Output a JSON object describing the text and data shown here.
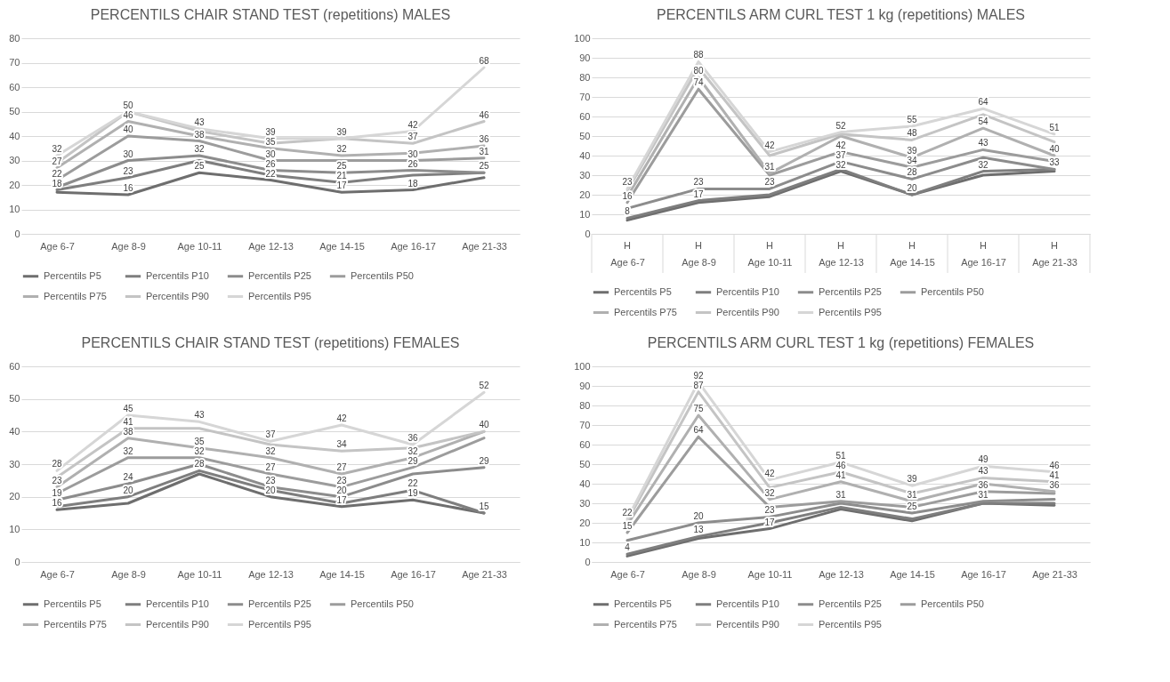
{
  "chart_data": [
    {
      "type": "line",
      "title": "PERCENTILS CHAIR STAND TEST (repetitions) MALES",
      "categories": [
        "Age 6-7",
        "Age 8-9",
        "Age 10-11",
        "Age 12-13",
        "Age 14-15",
        "Age 16-17",
        "Age 21-33"
      ],
      "ylim": [
        0,
        80
      ],
      "yticks": [
        0,
        10,
        20,
        30,
        40,
        50,
        60,
        70,
        80
      ],
      "grid": "y",
      "legend": "bottom",
      "marker": "none",
      "series": [
        {
          "name": "Percentils P5",
          "color": "#6e6e6e",
          "values": [
            17,
            16,
            25,
            22,
            17,
            18,
            23
          ],
          "value_labels": [
            null,
            "16",
            "25",
            "22",
            "17",
            "18",
            null
          ]
        },
        {
          "name": "Percentils P10",
          "color": "#7e7e7e",
          "values": [
            18,
            23,
            30,
            24,
            21,
            24,
            25
          ],
          "value_labels": [
            "18",
            "23",
            null,
            null,
            "21",
            null,
            null
          ]
        },
        {
          "name": "Percentils P25",
          "color": "#8c8c8c",
          "values": [
            19,
            30,
            32,
            26,
            25,
            26,
            25
          ],
          "value_labels": [
            null,
            "30",
            "32",
            "26",
            "25",
            "26",
            "25"
          ]
        },
        {
          "name": "Percentils P50",
          "color": "#9c9c9c",
          "values": [
            22,
            40,
            38,
            30,
            30,
            30,
            31
          ],
          "value_labels": [
            "22",
            "40",
            "38",
            "30",
            null,
            "30",
            "31"
          ]
        },
        {
          "name": "Percentils P75",
          "color": "#b0b0b0",
          "values": [
            27,
            46,
            40,
            35,
            32,
            33,
            36
          ],
          "value_labels": [
            "27",
            "46",
            null,
            "35",
            "32",
            null,
            "36"
          ]
        },
        {
          "name": "Percentils P90",
          "color": "#c4c4c4",
          "values": [
            29,
            50,
            42,
            37,
            39,
            37,
            46
          ],
          "value_labels": [
            null,
            null,
            null,
            null,
            null,
            "37",
            "46"
          ]
        },
        {
          "name": "Percentils P95",
          "color": "#d6d6d6",
          "values": [
            32,
            50,
            43,
            39,
            39,
            42,
            68
          ],
          "value_labels": [
            "32",
            "50",
            "43",
            "39",
            "39",
            "42",
            "68"
          ]
        }
      ]
    },
    {
      "type": "line",
      "title": "PERCENTILS ARM CURL TEST 1 kg (repetitions) MALES",
      "categories": [
        "Age 6-7",
        "Age 8-9",
        "Age 10-11",
        "Age 12-13",
        "Age 14-15",
        "Age 16-17",
        "Age 21-33"
      ],
      "ylim": [
        0,
        100
      ],
      "yticks": [
        0,
        10,
        20,
        30,
        40,
        50,
        60,
        70,
        80,
        90,
        100
      ],
      "grid": "y",
      "legend": "bottom",
      "marker": "none",
      "annotations": [
        "H",
        "H",
        "H",
        "H",
        "H",
        "H",
        "H"
      ],
      "series": [
        {
          "name": "Percentils P5",
          "color": "#6e6e6e",
          "values": [
            7,
            16,
            19,
            32,
            20,
            30,
            32
          ],
          "value_labels": [
            null,
            null,
            null,
            "32",
            "20",
            null,
            null
          ]
        },
        {
          "name": "Percentils P10",
          "color": "#7e7e7e",
          "values": [
            8,
            17,
            20,
            33,
            20,
            32,
            33
          ],
          "value_labels": [
            "8",
            "17",
            null,
            null,
            null,
            "32",
            null
          ]
        },
        {
          "name": "Percentils P25",
          "color": "#8c8c8c",
          "values": [
            13,
            23,
            23,
            37,
            28,
            39,
            33
          ],
          "value_labels": [
            null,
            "23",
            "23",
            "37",
            "28",
            null,
            "33"
          ]
        },
        {
          "name": "Percentils P50",
          "color": "#9c9c9c",
          "values": [
            16,
            74,
            30,
            42,
            34,
            43,
            37
          ],
          "value_labels": [
            "16",
            "74",
            null,
            "42",
            "34",
            "43",
            null
          ]
        },
        {
          "name": "Percentils P75",
          "color": "#b0b0b0",
          "values": [
            19,
            80,
            31,
            50,
            39,
            54,
            40
          ],
          "value_labels": [
            null,
            "80",
            "31",
            null,
            "39",
            "54",
            "40"
          ]
        },
        {
          "name": "Percentils P90",
          "color": "#c4c4c4",
          "values": [
            22,
            85,
            40,
            51,
            48,
            61,
            47
          ],
          "value_labels": [
            null,
            null,
            null,
            null,
            "48",
            null,
            null
          ]
        },
        {
          "name": "Percentils P95",
          "color": "#d6d6d6",
          "values": [
            23,
            88,
            42,
            52,
            55,
            64,
            51
          ],
          "value_labels": [
            "23",
            "88",
            "42",
            "52",
            "55",
            "64",
            "51"
          ]
        }
      ]
    },
    {
      "type": "line",
      "title": "PERCENTILS CHAIR STAND TEST (repetitions) FEMALES",
      "categories": [
        "Age 6-7",
        "Age 8-9",
        "Age 10-11",
        "Age 12-13",
        "Age 14-15",
        "Age 16-17",
        "Age 21-33"
      ],
      "ylim": [
        0,
        60
      ],
      "yticks": [
        0,
        10,
        20,
        30,
        40,
        50,
        60
      ],
      "grid": "y",
      "legend": "bottom",
      "marker": "none",
      "series": [
        {
          "name": "Percentils P5",
          "color": "#6e6e6e",
          "values": [
            16,
            18,
            27,
            20,
            17,
            19,
            15
          ],
          "value_labels": [
            "16",
            null,
            null,
            "20",
            "17",
            "19",
            null
          ]
        },
        {
          "name": "Percentils P10",
          "color": "#7e7e7e",
          "values": [
            17,
            20,
            28,
            22,
            18,
            22,
            15
          ],
          "value_labels": [
            null,
            "20",
            "28",
            null,
            null,
            "22",
            "15"
          ]
        },
        {
          "name": "Percentils P25",
          "color": "#8c8c8c",
          "values": [
            19,
            24,
            30,
            23,
            20,
            27,
            29
          ],
          "value_labels": [
            "19",
            "24",
            null,
            "23",
            "20",
            null,
            "29"
          ]
        },
        {
          "name": "Percentils P50",
          "color": "#9c9c9c",
          "values": [
            21,
            32,
            32,
            27,
            23,
            29,
            38
          ],
          "value_labels": [
            null,
            "32",
            "32",
            "27",
            "23",
            "29",
            null
          ]
        },
        {
          "name": "Percentils P75",
          "color": "#b0b0b0",
          "values": [
            23,
            38,
            35,
            32,
            27,
            32,
            40
          ],
          "value_labels": [
            "23",
            "38",
            "35",
            "32",
            "27",
            "32",
            null
          ]
        },
        {
          "name": "Percentils P90",
          "color": "#c4c4c4",
          "values": [
            26,
            41,
            41,
            36,
            34,
            35,
            40
          ],
          "value_labels": [
            null,
            "41",
            null,
            null,
            "34",
            null,
            "40"
          ]
        },
        {
          "name": "Percentils P95",
          "color": "#d6d6d6",
          "values": [
            28,
            45,
            43,
            37,
            42,
            36,
            52
          ],
          "value_labels": [
            "28",
            "45",
            "43",
            "37",
            "42",
            "36",
            "52"
          ]
        }
      ]
    },
    {
      "type": "line",
      "title": "PERCENTILS ARM CURL TEST 1 kg (repetitions) FEMALES",
      "categories": [
        "Age 6-7",
        "Age 8-9",
        "Age 10-11",
        "Age 12-13",
        "Age 14-15",
        "Age 16-17",
        "Age 21-33"
      ],
      "ylim": [
        0,
        100
      ],
      "yticks": [
        0,
        10,
        20,
        30,
        40,
        50,
        60,
        70,
        80,
        90,
        100
      ],
      "grid": "y",
      "legend": "bottom",
      "marker": "none",
      "series": [
        {
          "name": "Percentils P5",
          "color": "#6e6e6e",
          "values": [
            3,
            12,
            17,
            27,
            21,
            30,
            29
          ],
          "value_labels": [
            null,
            null,
            "17",
            null,
            null,
            null,
            null
          ]
        },
        {
          "name": "Percentils P10",
          "color": "#7e7e7e",
          "values": [
            4,
            13,
            20,
            28,
            22,
            30,
            30
          ],
          "value_labels": [
            "4",
            "13",
            null,
            null,
            null,
            null,
            null
          ]
        },
        {
          "name": "Percentils P25",
          "color": "#8c8c8c",
          "values": [
            11,
            20,
            23,
            30,
            25,
            31,
            32
          ],
          "value_labels": [
            null,
            "20",
            "23",
            null,
            "25",
            "31",
            null
          ]
        },
        {
          "name": "Percentils P50",
          "color": "#9c9c9c",
          "values": [
            15,
            64,
            28,
            31,
            28,
            36,
            35
          ],
          "value_labels": [
            "15",
            "64",
            null,
            "31",
            null,
            "36",
            null
          ]
        },
        {
          "name": "Percentils P75",
          "color": "#b0b0b0",
          "values": [
            19,
            75,
            32,
            41,
            31,
            40,
            36
          ],
          "value_labels": [
            null,
            "75",
            "32",
            "41",
            "31",
            null,
            "36"
          ]
        },
        {
          "name": "Percentils P90",
          "color": "#c4c4c4",
          "values": [
            21,
            87,
            38,
            46,
            35,
            43,
            41
          ],
          "value_labels": [
            null,
            "87",
            null,
            "46",
            null,
            "43",
            "41"
          ]
        },
        {
          "name": "Percentils P95",
          "color": "#d6d6d6",
          "values": [
            22,
            92,
            42,
            51,
            39,
            49,
            46
          ],
          "value_labels": [
            "22",
            "92",
            "42",
            "51",
            "39",
            "49",
            "46"
          ]
        }
      ]
    }
  ]
}
